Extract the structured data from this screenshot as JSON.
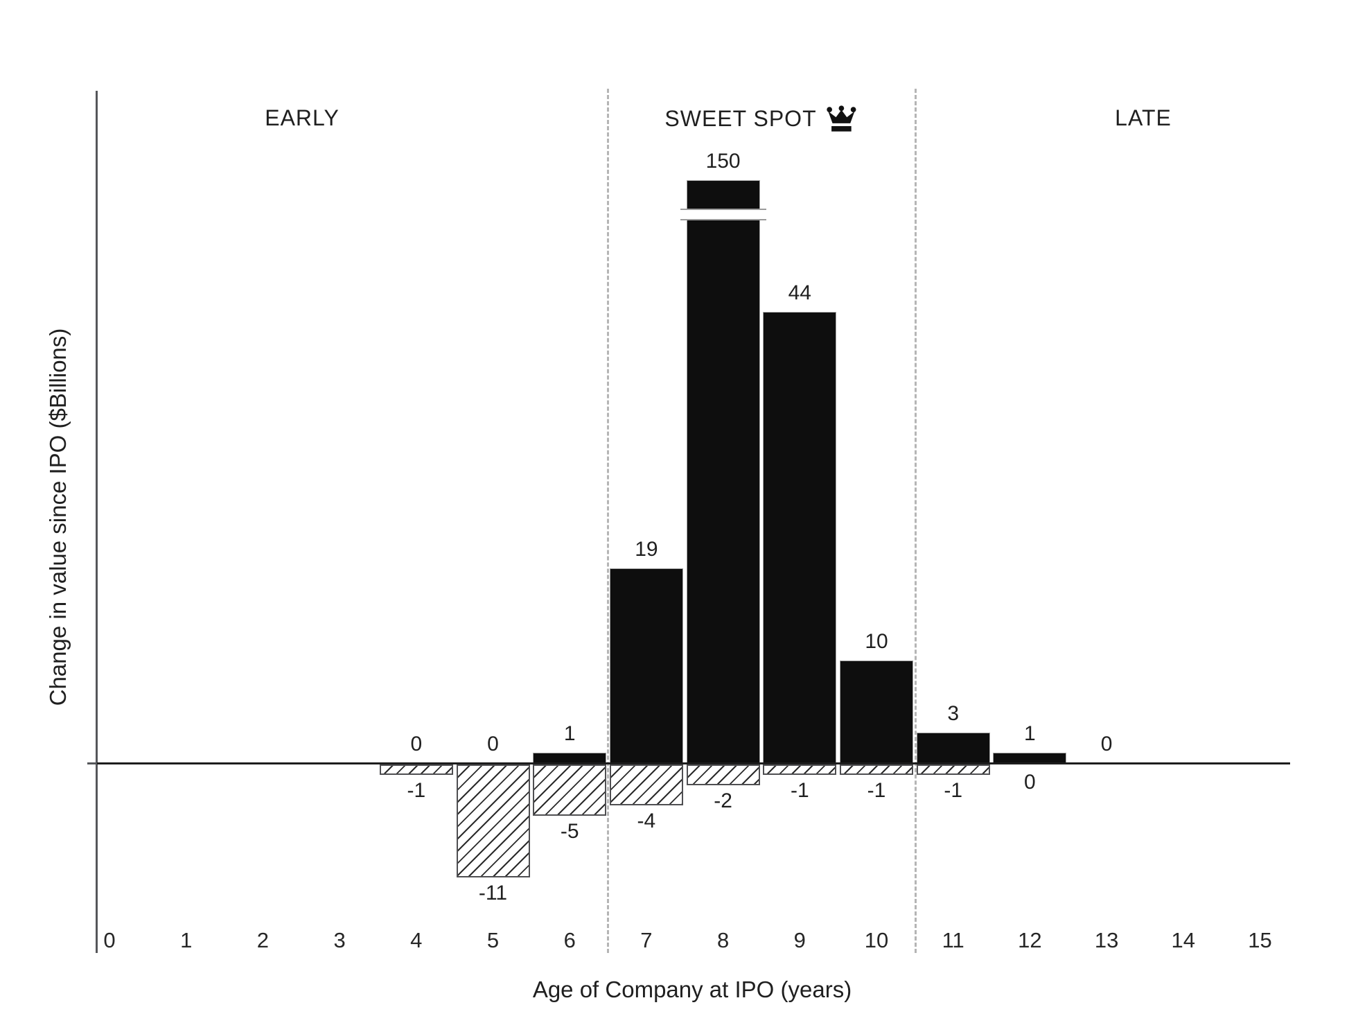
{
  "chart_data": {
    "type": "bar",
    "title": "",
    "xlabel": "Age of Company at IPO (years)",
    "ylabel": "Change in value since IPO ($Billions)",
    "x_ticks": [
      "0",
      "1",
      "2",
      "3",
      "4",
      "5",
      "6",
      "7",
      "8",
      "9",
      "10",
      "11",
      "12",
      "13",
      "14",
      "15"
    ],
    "zones": [
      {
        "label": "EARLY",
        "from": 0,
        "to": 6.5
      },
      {
        "label": "SWEET SPOT",
        "icon": "crown-icon",
        "from": 6.5,
        "to": 10.5
      },
      {
        "label": "LATE",
        "from": 10.5,
        "to": 15.5
      }
    ],
    "zone_dividers_x": [
      6.5,
      10.5
    ],
    "bars": [
      {
        "age": 4,
        "gain": 0,
        "loss": -1,
        "truncated": false
      },
      {
        "age": 5,
        "gain": 0,
        "loss": -11,
        "truncated": false
      },
      {
        "age": 6,
        "gain": 1,
        "loss": -5,
        "truncated": false
      },
      {
        "age": 7,
        "gain": 19,
        "loss": -4,
        "truncated": false
      },
      {
        "age": 8,
        "gain": 150,
        "loss": -2,
        "truncated": true
      },
      {
        "age": 9,
        "gain": 44,
        "loss": -1,
        "truncated": false
      },
      {
        "age": 10,
        "gain": 10,
        "loss": -1,
        "truncated": false
      },
      {
        "age": 11,
        "gain": 3,
        "loss": -1,
        "truncated": false
      },
      {
        "age": 12,
        "gain": 1,
        "loss": 0,
        "truncated": false
      },
      {
        "age": 13,
        "gain": 0,
        "loss": null,
        "truncated": false
      }
    ],
    "axis_break": {
      "age": 8,
      "shown_value": 150
    },
    "grid": false,
    "legend": "none"
  },
  "colors": {
    "bar_fill": "#0e0e0e",
    "hatch_line": "#2b2b2b",
    "axis": "#55565a",
    "divider": "#b5b5b5",
    "text": "#1f1f1f",
    "background": "#ffffff"
  }
}
